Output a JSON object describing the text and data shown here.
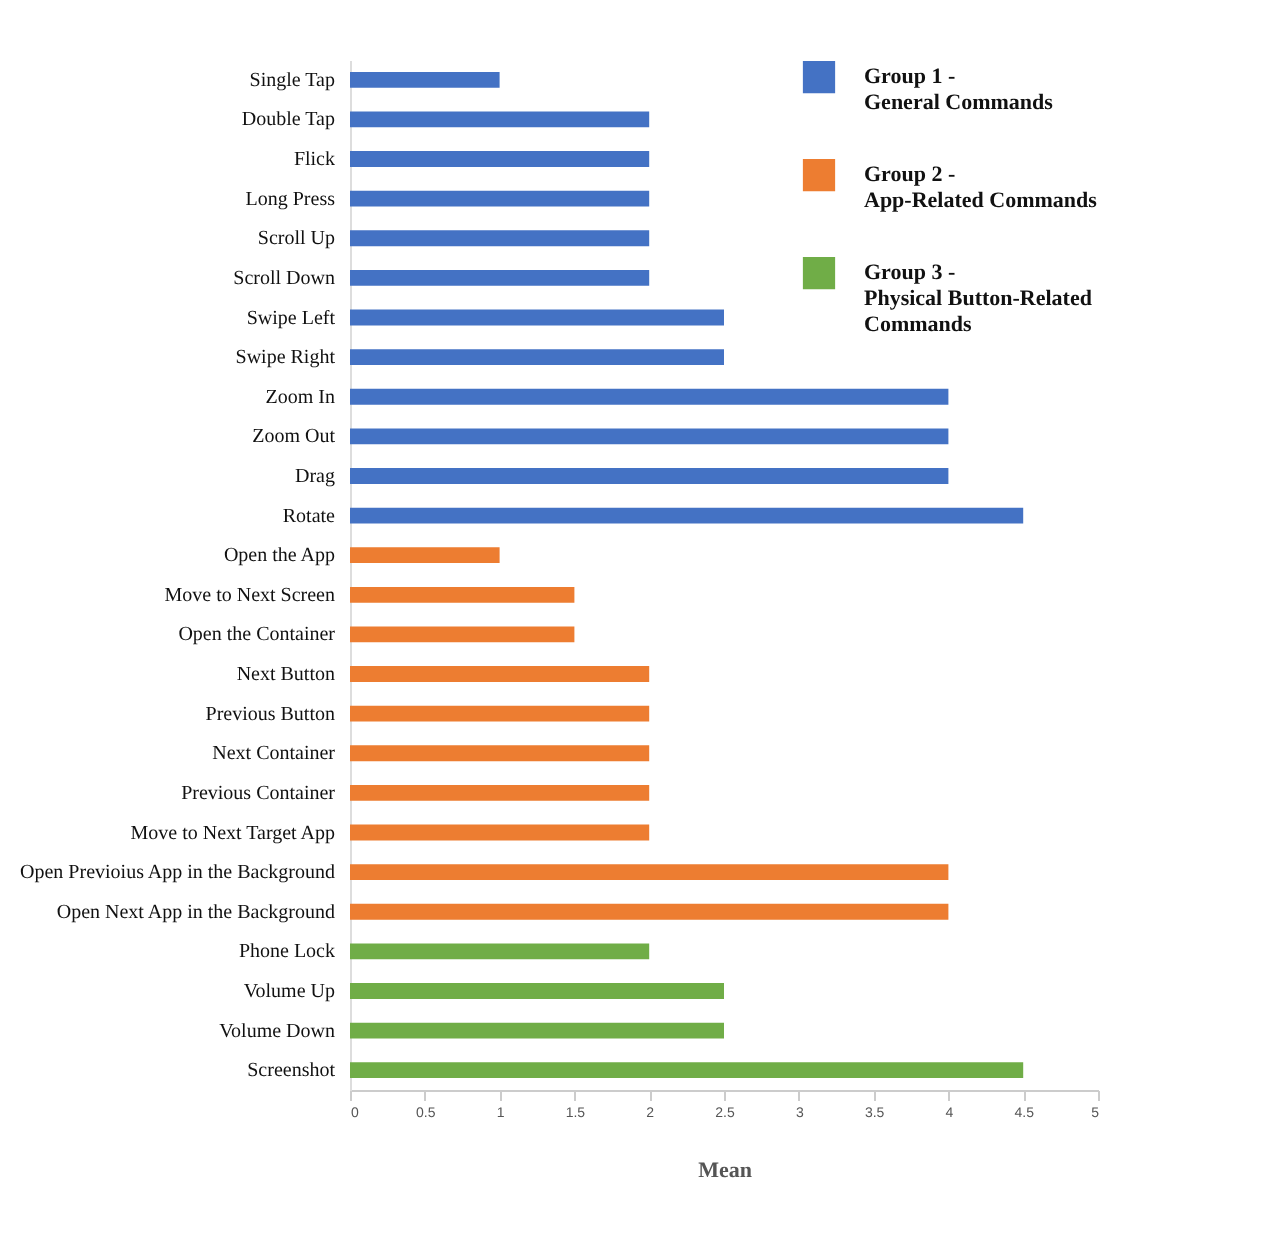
{
  "chart_data": {
    "type": "bar",
    "orientation": "horizontal",
    "xlabel": "Mean",
    "xlim": [
      0,
      5
    ],
    "xticks": [
      0,
      0.5,
      1,
      1.5,
      2,
      2.5,
      3,
      3.5,
      4,
      4.5,
      5
    ],
    "grid": false,
    "legend": "top right",
    "categories": [
      "Single Tap",
      "Double Tap",
      "Flick",
      "Long Press",
      "Scroll Up",
      "Scroll Down",
      "Swipe Left",
      "Swipe Right",
      "Zoom In",
      "Zoom Out",
      "Drag",
      "Rotate",
      "Open the App",
      "Move to Next Screen",
      "Open the Container",
      "Next Button",
      "Previous Button",
      "Next Container",
      "Previous Container",
      "Move to Next Target App",
      "Open Previoius App in the Background",
      "Open Next App in the Background",
      "Phone Lock",
      "Volume Up",
      "Volume Down",
      "Screenshot"
    ],
    "series": [
      {
        "name": "Group 1 -\nGeneral Commands",
        "color": "#4472c4",
        "values": [
          1,
          2,
          2,
          2,
          2,
          2,
          2.5,
          2.5,
          4,
          4,
          4,
          4.5,
          null,
          null,
          null,
          null,
          null,
          null,
          null,
          null,
          null,
          null,
          null,
          null,
          null,
          null
        ]
      },
      {
        "name": "Group 2 -\nApp-Related Commands",
        "color": "#ed7d31",
        "values": [
          null,
          null,
          null,
          null,
          null,
          null,
          null,
          null,
          null,
          null,
          null,
          null,
          1,
          1.5,
          1.5,
          2,
          2,
          2,
          2,
          2,
          4,
          4,
          null,
          null,
          null,
          null
        ]
      },
      {
        "name": "Group 3 -\nPhysical Button-Related\nCommands",
        "color": "#70ad47",
        "values": [
          null,
          null,
          null,
          null,
          null,
          null,
          null,
          null,
          null,
          null,
          null,
          null,
          null,
          null,
          null,
          null,
          null,
          null,
          null,
          null,
          null,
          null,
          2,
          2.5,
          2.5,
          4.5
        ]
      }
    ]
  }
}
